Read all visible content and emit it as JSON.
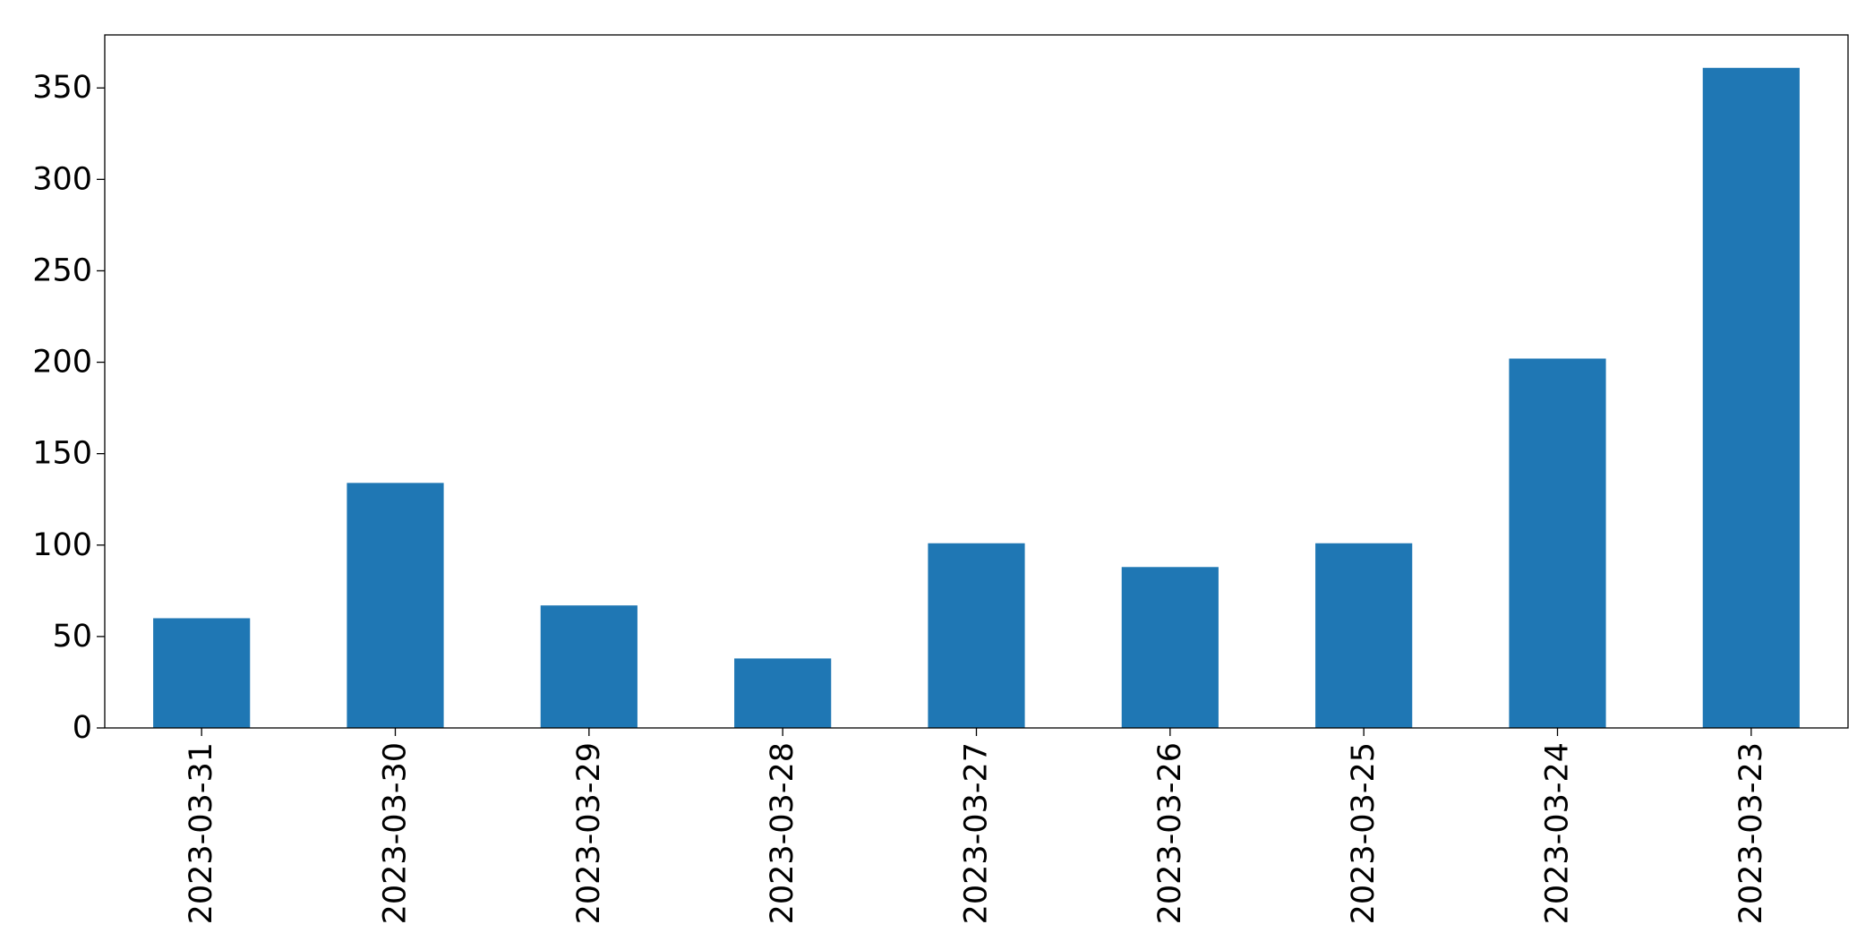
{
  "chart_data": {
    "type": "bar",
    "title": "",
    "xlabel": "",
    "ylabel": "",
    "categories": [
      "2023-03-31",
      "2023-03-30",
      "2023-03-29",
      "2023-03-28",
      "2023-03-27",
      "2023-03-26",
      "2023-03-25",
      "2023-03-24",
      "2023-03-23"
    ],
    "values": [
      60,
      134,
      67,
      38,
      101,
      88,
      101,
      202,
      361
    ],
    "ylim": [
      0,
      379
    ],
    "yticks": [
      0,
      50,
      100,
      150,
      200,
      250,
      300,
      350
    ],
    "grid": false,
    "legend": "none",
    "x_tick_rotation": "vertical",
    "bar_color": "#1f77b4"
  }
}
